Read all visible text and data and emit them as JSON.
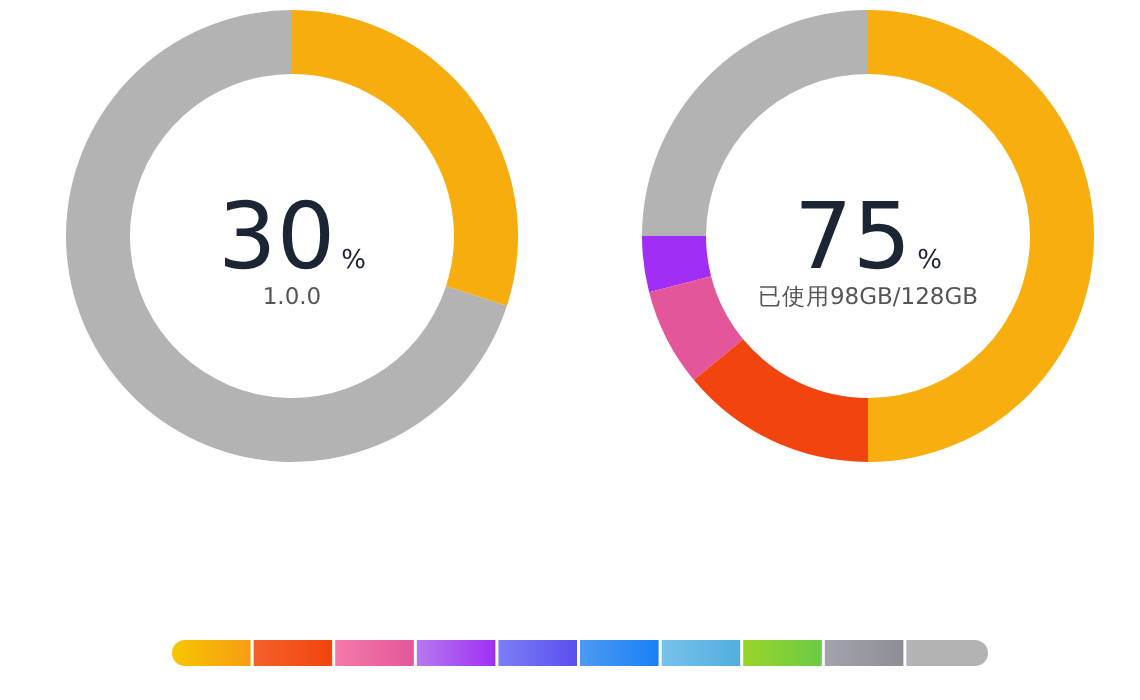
{
  "chart_data": [
    {
      "type": "donut",
      "title": "30%",
      "subtitle": "1.0.0",
      "categories": [
        null,
        null
      ],
      "values": [
        30,
        70
      ],
      "colors": [
        "#f8ad0e",
        "#b3b3b3"
      ]
    },
    {
      "type": "donut",
      "title": "75%",
      "subtitle": "已使用98GB/128GB",
      "categories": [
        null,
        null,
        null,
        null,
        null
      ],
      "values": [
        50,
        14,
        7,
        4,
        25
      ],
      "colors": [
        "#f7ae0e",
        "#f2440f",
        "#e4569a",
        "#a02ef5",
        "#b3b3b3"
      ]
    }
  ]
}
